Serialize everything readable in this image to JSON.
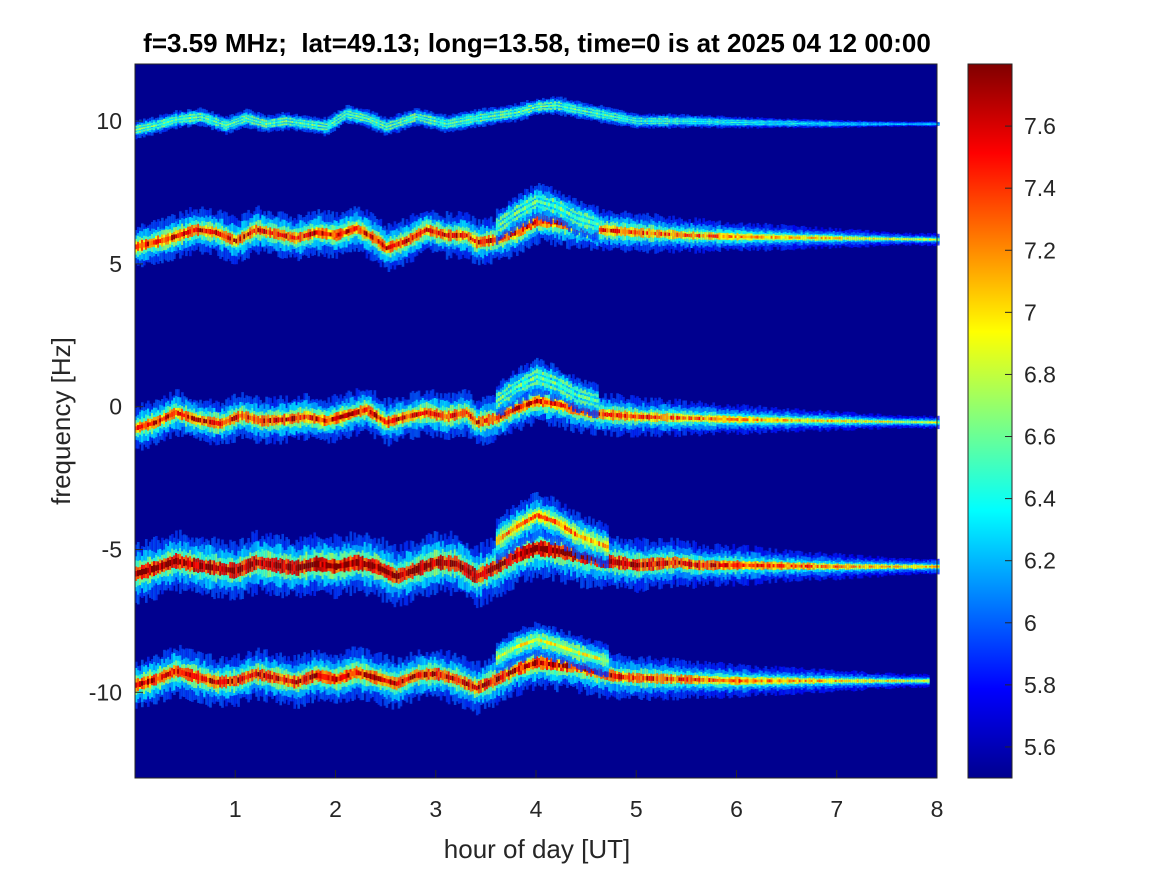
{
  "chart_data": {
    "type": "heatmap",
    "title": "f=3.59 MHz;  lat=49.13; long=13.58, time=0 is at 2025 04 12 00:00",
    "xlabel": "hour of day [UT]",
    "ylabel": "frequency [Hz]",
    "xlim": [
      0,
      8
    ],
    "ylim": [
      -13,
      12
    ],
    "xticks": [
      1,
      2,
      3,
      4,
      5,
      6,
      7,
      8
    ],
    "yticks": [
      10,
      5,
      0,
      -5,
      -10
    ],
    "grid": false,
    "colorbar": {
      "range": [
        5.5,
        7.8
      ],
      "ticks": [
        7.6,
        7.4,
        7.2,
        7,
        6.8,
        6.6,
        6.4,
        6.2,
        6,
        5.8,
        5.6
      ],
      "colormap": "jet"
    },
    "background_value": 5.5,
    "traces": [
      {
        "center_hz": 10,
        "peak_level": 6.6,
        "width_hz": 0.18,
        "x_end": 8.0,
        "shape": [
          [
            0,
            9.7
          ],
          [
            0.2,
            9.85
          ],
          [
            0.4,
            10.05
          ],
          [
            0.65,
            10.15
          ],
          [
            0.9,
            9.85
          ],
          [
            1.1,
            10.1
          ],
          [
            1.3,
            9.9
          ],
          [
            1.5,
            10.0
          ],
          [
            1.9,
            9.8
          ],
          [
            2.1,
            10.25
          ],
          [
            2.3,
            10.1
          ],
          [
            2.5,
            9.8
          ],
          [
            2.8,
            10.15
          ],
          [
            3.1,
            9.9
          ],
          [
            3.4,
            10.1
          ],
          [
            3.6,
            10.2
          ],
          [
            3.8,
            10.3
          ],
          [
            4.0,
            10.5
          ],
          [
            4.2,
            10.55
          ],
          [
            4.4,
            10.4
          ],
          [
            4.7,
            10.2
          ],
          [
            5.0,
            10.0
          ],
          [
            5.5,
            10.0
          ],
          [
            6.0,
            9.95
          ],
          [
            7.0,
            9.9
          ],
          [
            8.0,
            9.9
          ]
        ]
      },
      {
        "center_hz": 5.5,
        "peak_level": 7.5,
        "width_hz": 0.45,
        "x_end": 8.0,
        "shape": [
          [
            0,
            5.6
          ],
          [
            0.3,
            5.85
          ],
          [
            0.6,
            6.2
          ],
          [
            0.8,
            6.1
          ],
          [
            1.0,
            5.8
          ],
          [
            1.2,
            6.2
          ],
          [
            1.4,
            6.05
          ],
          [
            1.6,
            5.9
          ],
          [
            1.8,
            6.1
          ],
          [
            2.0,
            6.0
          ],
          [
            2.2,
            6.25
          ],
          [
            2.4,
            5.85
          ],
          [
            2.5,
            5.55
          ],
          [
            2.7,
            5.8
          ],
          [
            2.9,
            6.2
          ],
          [
            3.1,
            6.0
          ],
          [
            3.3,
            6.0
          ],
          [
            3.4,
            5.75
          ],
          [
            3.6,
            5.85
          ],
          [
            3.8,
            6.1
          ],
          [
            4.0,
            6.5
          ],
          [
            4.2,
            6.45
          ],
          [
            4.4,
            6.3
          ],
          [
            4.6,
            6.2
          ],
          [
            5.0,
            6.1
          ],
          [
            5.5,
            6.0
          ],
          [
            6.0,
            5.95
          ],
          [
            7.0,
            5.9
          ],
          [
            8.0,
            5.85
          ]
        ]
      },
      {
        "center_hz": -0.5,
        "peak_level": 7.5,
        "width_hz": 0.45,
        "x_end": 8.0,
        "shape": [
          [
            0,
            -0.75
          ],
          [
            0.2,
            -0.55
          ],
          [
            0.4,
            -0.2
          ],
          [
            0.6,
            -0.45
          ],
          [
            0.85,
            -0.6
          ],
          [
            1.05,
            -0.3
          ],
          [
            1.25,
            -0.5
          ],
          [
            1.5,
            -0.45
          ],
          [
            1.7,
            -0.35
          ],
          [
            1.9,
            -0.5
          ],
          [
            2.1,
            -0.3
          ],
          [
            2.3,
            -0.1
          ],
          [
            2.5,
            -0.55
          ],
          [
            2.7,
            -0.35
          ],
          [
            2.9,
            -0.2
          ],
          [
            3.1,
            -0.35
          ],
          [
            3.3,
            -0.2
          ],
          [
            3.4,
            -0.55
          ],
          [
            3.6,
            -0.4
          ],
          [
            3.8,
            -0.05
          ],
          [
            4.0,
            0.2
          ],
          [
            4.2,
            0.1
          ],
          [
            4.4,
            -0.1
          ],
          [
            4.6,
            -0.25
          ],
          [
            5.0,
            -0.35
          ],
          [
            5.5,
            -0.4
          ],
          [
            6.0,
            -0.45
          ],
          [
            7.0,
            -0.5
          ],
          [
            8.0,
            -0.55
          ]
        ]
      },
      {
        "center_hz": -5.5,
        "peak_level": 7.8,
        "width_hz": 0.6,
        "x_end": 8.0,
        "shape": [
          [
            0,
            -5.85
          ],
          [
            0.2,
            -5.65
          ],
          [
            0.4,
            -5.4
          ],
          [
            0.6,
            -5.55
          ],
          [
            0.8,
            -5.65
          ],
          [
            1.0,
            -5.75
          ],
          [
            1.2,
            -5.45
          ],
          [
            1.4,
            -5.55
          ],
          [
            1.6,
            -5.65
          ],
          [
            1.8,
            -5.5
          ],
          [
            2.0,
            -5.6
          ],
          [
            2.2,
            -5.45
          ],
          [
            2.4,
            -5.6
          ],
          [
            2.6,
            -5.95
          ],
          [
            2.8,
            -5.7
          ],
          [
            3.0,
            -5.45
          ],
          [
            3.2,
            -5.5
          ],
          [
            3.4,
            -5.95
          ],
          [
            3.6,
            -5.6
          ],
          [
            3.8,
            -5.2
          ],
          [
            4.0,
            -4.95
          ],
          [
            4.2,
            -5.05
          ],
          [
            4.4,
            -5.2
          ],
          [
            4.6,
            -5.35
          ],
          [
            4.8,
            -5.45
          ],
          [
            5.0,
            -5.55
          ],
          [
            5.2,
            -5.5
          ],
          [
            5.4,
            -5.45
          ],
          [
            5.6,
            -5.55
          ],
          [
            6.0,
            -5.55
          ],
          [
            7.0,
            -5.6
          ],
          [
            8.0,
            -5.6
          ]
        ]
      },
      {
        "center_hz": -9.5,
        "peak_level": 7.6,
        "width_hz": 0.5,
        "x_end": 7.9,
        "shape": [
          [
            0,
            -9.75
          ],
          [
            0.2,
            -9.55
          ],
          [
            0.4,
            -9.25
          ],
          [
            0.6,
            -9.45
          ],
          [
            0.8,
            -9.65
          ],
          [
            1.0,
            -9.6
          ],
          [
            1.2,
            -9.35
          ],
          [
            1.4,
            -9.5
          ],
          [
            1.6,
            -9.65
          ],
          [
            1.8,
            -9.4
          ],
          [
            2.0,
            -9.55
          ],
          [
            2.2,
            -9.3
          ],
          [
            2.4,
            -9.5
          ],
          [
            2.6,
            -9.7
          ],
          [
            2.8,
            -9.4
          ],
          [
            3.0,
            -9.35
          ],
          [
            3.2,
            -9.55
          ],
          [
            3.4,
            -9.85
          ],
          [
            3.6,
            -9.55
          ],
          [
            3.8,
            -9.2
          ],
          [
            4.0,
            -8.95
          ],
          [
            4.2,
            -9.05
          ],
          [
            4.4,
            -9.1
          ],
          [
            4.6,
            -9.3
          ],
          [
            4.8,
            -9.45
          ],
          [
            5.0,
            -9.5
          ],
          [
            5.5,
            -9.55
          ],
          [
            6.0,
            -9.6
          ],
          [
            7.0,
            -9.6
          ],
          [
            7.9,
            -9.6
          ]
        ]
      }
    ],
    "secondary_traces": [
      {
        "center_hz": 7,
        "peak_level": 6.6,
        "width_hz": 0.35,
        "x_start": 3.6,
        "x_end": 4.6,
        "shape": [
          [
            3.6,
            6.3
          ],
          [
            3.8,
            6.8
          ],
          [
            4.0,
            7.2
          ],
          [
            4.2,
            7.0
          ],
          [
            4.4,
            6.6
          ],
          [
            4.6,
            6.4
          ]
        ]
      },
      {
        "center_hz": 0.8,
        "peak_level": 6.6,
        "width_hz": 0.35,
        "x_start": 3.6,
        "x_end": 4.6,
        "shape": [
          [
            3.6,
            0.2
          ],
          [
            3.8,
            0.7
          ],
          [
            4.0,
            1.05
          ],
          [
            4.2,
            0.8
          ],
          [
            4.4,
            0.4
          ],
          [
            4.6,
            0.2
          ]
        ]
      },
      {
        "center_hz": -4,
        "peak_level": 7.2,
        "width_hz": 0.45,
        "x_start": 3.6,
        "x_end": 4.7,
        "shape": [
          [
            3.6,
            -4.7
          ],
          [
            3.8,
            -4.2
          ],
          [
            4.0,
            -3.8
          ],
          [
            4.2,
            -4.05
          ],
          [
            4.4,
            -4.5
          ],
          [
            4.7,
            -4.9
          ]
        ]
      },
      {
        "center_hz": -8.2,
        "peak_level": 6.9,
        "width_hz": 0.35,
        "x_start": 3.6,
        "x_end": 4.7,
        "shape": [
          [
            3.6,
            -8.8
          ],
          [
            3.8,
            -8.4
          ],
          [
            4.0,
            -8.15
          ],
          [
            4.2,
            -8.35
          ],
          [
            4.4,
            -8.6
          ],
          [
            4.7,
            -8.9
          ]
        ]
      }
    ]
  }
}
